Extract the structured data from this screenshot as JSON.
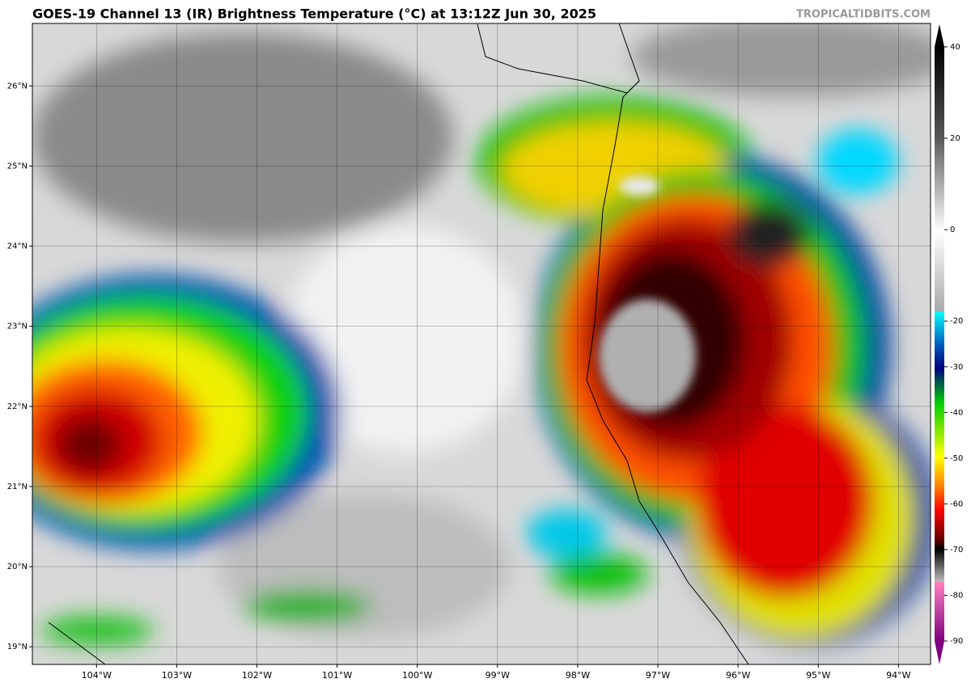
{
  "header": {
    "title": "GOES-19 Channel 13 (IR) Brightness Temperature (°C) at 13:12Z Jun 30, 2025",
    "source": "TROPICALTIDBITS.COM"
  },
  "map": {
    "lonlim": [
      -104.8,
      -93.6
    ],
    "latlim": [
      18.78,
      26.78
    ],
    "lon_ticks": [
      {
        "value": -104,
        "label": "104°W"
      },
      {
        "value": -103,
        "label": "103°W"
      },
      {
        "value": -102,
        "label": "102°W"
      },
      {
        "value": -101,
        "label": "101°W"
      },
      {
        "value": -100,
        "label": "100°W"
      },
      {
        "value": -99,
        "label": "99°W"
      },
      {
        "value": -98,
        "label": "98°W"
      },
      {
        "value": -97,
        "label": "97°W"
      },
      {
        "value": -96,
        "label": "96°W"
      },
      {
        "value": -95,
        "label": "95°W"
      },
      {
        "value": -94,
        "label": "94°W"
      }
    ],
    "lat_ticks": [
      {
        "value": 19,
        "label": "19°N"
      },
      {
        "value": 20,
        "label": "20°N"
      },
      {
        "value": 21,
        "label": "21°N"
      },
      {
        "value": 22,
        "label": "22°N"
      },
      {
        "value": 23,
        "label": "23°N"
      },
      {
        "value": 24,
        "label": "24°N"
      },
      {
        "value": 25,
        "label": "25°N"
      },
      {
        "value": 26,
        "label": "26°N"
      }
    ]
  },
  "colorbar": {
    "lim": [
      -90,
      40
    ],
    "ticks": [
      40,
      20,
      0,
      -20,
      -30,
      -40,
      -50,
      -60,
      -70,
      -80,
      -90
    ]
  }
}
